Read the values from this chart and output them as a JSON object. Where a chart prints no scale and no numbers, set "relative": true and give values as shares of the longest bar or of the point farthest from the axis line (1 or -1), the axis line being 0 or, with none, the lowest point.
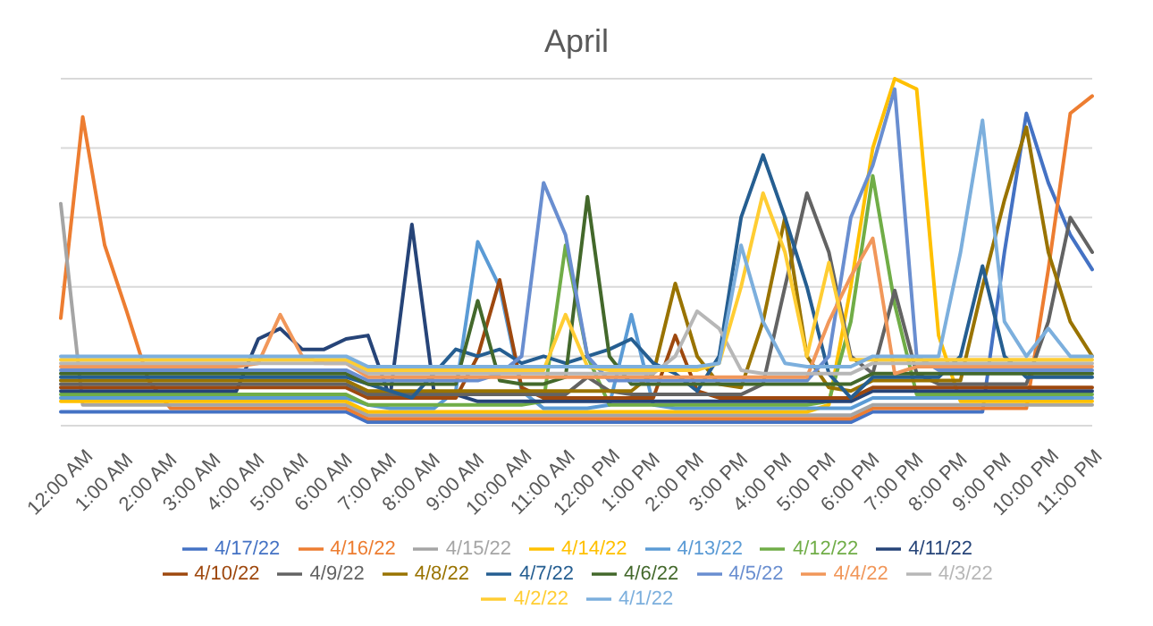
{
  "chart_data": {
    "type": "line",
    "title": "April",
    "relative": true,
    "grid": "y",
    "legend": "bottom",
    "categories": [
      "12:00 AM",
      null,
      "1:00 AM",
      null,
      "2:00 AM",
      null,
      "3:00 AM",
      null,
      "4:00 AM",
      null,
      "5:00 AM",
      null,
      "6:00 AM",
      null,
      "7:00 AM",
      null,
      "8:00 AM",
      null,
      "9:00 AM",
      null,
      "10:00 AM",
      null,
      "11:00 AM",
      null,
      "12:00 PM",
      null,
      "1:00 PM",
      null,
      "2:00 PM",
      null,
      "3:00 PM",
      null,
      "4:00 PM",
      null,
      "5:00 PM",
      null,
      "6:00 PM",
      null,
      "7:00 PM",
      null,
      "8:00 PM",
      null,
      "9:00 PM",
      null,
      "10:00 PM",
      null,
      "11:00 PM",
      null
    ],
    "series": [
      {
        "name": "4/17/22",
        "color": "#4472c4",
        "values": [
          0.04,
          0.04,
          0.04,
          0.04,
          0.04,
          0.04,
          0.04,
          0.04,
          0.04,
          0.04,
          0.04,
          0.04,
          0.04,
          0.04,
          0.01,
          0.01,
          0.01,
          0.01,
          0.01,
          0.01,
          0.01,
          0.01,
          0.01,
          0.01,
          0.01,
          0.01,
          0.01,
          0.01,
          0.01,
          0.01,
          0.01,
          0.01,
          0.01,
          0.01,
          0.01,
          0.01,
          0.01,
          0.04,
          0.04,
          0.04,
          0.04,
          0.04,
          0.04,
          0.5,
          0.9,
          0.7,
          0.55,
          0.45
        ]
      },
      {
        "name": "4/16/22",
        "color": "#ed7d31",
        "values": [
          0.31,
          0.89,
          0.52,
          0.33,
          0.13,
          0.05,
          0.05,
          0.05,
          0.05,
          0.05,
          0.05,
          0.05,
          0.05,
          0.05,
          0.02,
          0.02,
          0.02,
          0.02,
          0.02,
          0.02,
          0.02,
          0.02,
          0.02,
          0.02,
          0.02,
          0.02,
          0.02,
          0.02,
          0.02,
          0.02,
          0.02,
          0.02,
          0.02,
          0.02,
          0.02,
          0.02,
          0.02,
          0.05,
          0.05,
          0.05,
          0.05,
          0.05,
          0.05,
          0.05,
          0.05,
          0.45,
          0.9,
          0.95
        ]
      },
      {
        "name": "4/15/22",
        "color": "#a5a5a5",
        "values": [
          0.64,
          0.06,
          0.06,
          0.06,
          0.06,
          0.06,
          0.06,
          0.06,
          0.06,
          0.06,
          0.06,
          0.06,
          0.06,
          0.06,
          0.03,
          0.03,
          0.03,
          0.03,
          0.03,
          0.03,
          0.03,
          0.03,
          0.03,
          0.03,
          0.03,
          0.03,
          0.03,
          0.03,
          0.03,
          0.03,
          0.03,
          0.03,
          0.03,
          0.03,
          0.03,
          0.03,
          0.03,
          0.06,
          0.06,
          0.06,
          0.06,
          0.06,
          0.06,
          0.06,
          0.06,
          0.06,
          0.06,
          0.06
        ]
      },
      {
        "name": "4/14/22",
        "color": "#ffc000",
        "values": [
          0.07,
          0.07,
          0.07,
          0.07,
          0.07,
          0.07,
          0.07,
          0.07,
          0.07,
          0.07,
          0.07,
          0.07,
          0.07,
          0.07,
          0.04,
          0.04,
          0.04,
          0.04,
          0.04,
          0.04,
          0.04,
          0.04,
          0.04,
          0.04,
          0.04,
          0.04,
          0.04,
          0.04,
          0.04,
          0.04,
          0.04,
          0.04,
          0.04,
          0.04,
          0.04,
          0.06,
          0.4,
          0.8,
          1,
          0.97,
          0.26,
          0.07,
          0.07,
          0.07,
          0.07,
          0.07,
          0.07,
          0.07
        ]
      },
      {
        "name": "4/13/22",
        "color": "#5b9bd5",
        "values": [
          0.08,
          0.08,
          0.08,
          0.08,
          0.08,
          0.08,
          0.08,
          0.08,
          0.08,
          0.08,
          0.08,
          0.08,
          0.08,
          0.08,
          0.06,
          0.05,
          0.05,
          0.05,
          0.1,
          0.53,
          0.4,
          0.1,
          0.05,
          0.05,
          0.05,
          0.06,
          0.32,
          0.06,
          0.05,
          0.05,
          0.05,
          0.05,
          0.05,
          0.05,
          0.05,
          0.05,
          0.05,
          0.08,
          0.08,
          0.08,
          0.08,
          0.08,
          0.08,
          0.08,
          0.08,
          0.08,
          0.08,
          0.08
        ]
      },
      {
        "name": "4/12/22",
        "color": "#70ad47",
        "values": [
          0.09,
          0.09,
          0.09,
          0.09,
          0.09,
          0.09,
          0.09,
          0.09,
          0.09,
          0.09,
          0.09,
          0.09,
          0.09,
          0.09,
          0.06,
          0.06,
          0.06,
          0.06,
          0.06,
          0.06,
          0.06,
          0.06,
          0.07,
          0.52,
          0.2,
          0.06,
          0.06,
          0.06,
          0.06,
          0.06,
          0.06,
          0.06,
          0.06,
          0.06,
          0.06,
          0.07,
          0.3,
          0.72,
          0.35,
          0.09,
          0.09,
          0.09,
          0.09,
          0.09,
          0.09,
          0.09,
          0.09,
          0.09
        ]
      },
      {
        "name": "4/11/22",
        "color": "#264478",
        "values": [
          0.1,
          0.1,
          0.1,
          0.1,
          0.1,
          0.1,
          0.1,
          0.1,
          0.1,
          0.25,
          0.28,
          0.22,
          0.22,
          0.25,
          0.26,
          0.08,
          0.58,
          0.1,
          0.09,
          0.07,
          0.07,
          0.07,
          0.07,
          0.07,
          0.07,
          0.07,
          0.07,
          0.07,
          0.07,
          0.07,
          0.07,
          0.07,
          0.07,
          0.07,
          0.07,
          0.07,
          0.07,
          0.1,
          0.1,
          0.1,
          0.1,
          0.1,
          0.1,
          0.1,
          0.1,
          0.1,
          0.1,
          0.1
        ]
      },
      {
        "name": "4/10/22",
        "color": "#9e480e",
        "values": [
          0.11,
          0.11,
          0.11,
          0.11,
          0.11,
          0.11,
          0.11,
          0.11,
          0.11,
          0.11,
          0.11,
          0.11,
          0.11,
          0.11,
          0.08,
          0.08,
          0.08,
          0.08,
          0.08,
          0.2,
          0.42,
          0.11,
          0.08,
          0.08,
          0.08,
          0.08,
          0.08,
          0.08,
          0.26,
          0.1,
          0.08,
          0.08,
          0.08,
          0.08,
          0.08,
          0.08,
          0.08,
          0.11,
          0.11,
          0.11,
          0.11,
          0.11,
          0.11,
          0.11,
          0.11,
          0.11,
          0.11,
          0.11
        ]
      },
      {
        "name": "4/9/22",
        "color": "#636363",
        "values": [
          0.12,
          0.12,
          0.12,
          0.12,
          0.12,
          0.12,
          0.12,
          0.12,
          0.12,
          0.12,
          0.12,
          0.12,
          0.12,
          0.12,
          0.09,
          0.09,
          0.09,
          0.09,
          0.09,
          0.09,
          0.09,
          0.09,
          0.09,
          0.09,
          0.14,
          0.1,
          0.09,
          0.09,
          0.09,
          0.09,
          0.09,
          0.09,
          0.12,
          0.4,
          0.67,
          0.5,
          0.2,
          0.15,
          0.39,
          0.15,
          0.12,
          0.12,
          0.12,
          0.12,
          0.12,
          0.3,
          0.6,
          0.5
        ]
      },
      {
        "name": "4/8/22",
        "color": "#997300",
        "values": [
          0.13,
          0.13,
          0.13,
          0.13,
          0.13,
          0.13,
          0.13,
          0.13,
          0.13,
          0.13,
          0.13,
          0.13,
          0.13,
          0.13,
          0.1,
          0.1,
          0.1,
          0.1,
          0.1,
          0.1,
          0.1,
          0.1,
          0.1,
          0.1,
          0.1,
          0.1,
          0.1,
          0.15,
          0.41,
          0.2,
          0.12,
          0.11,
          0.3,
          0.6,
          0.2,
          0.11,
          0.1,
          0.13,
          0.13,
          0.13,
          0.13,
          0.13,
          0.4,
          0.65,
          0.86,
          0.5,
          0.3,
          0.2
        ]
      },
      {
        "name": "4/7/22",
        "color": "#255e91",
        "values": [
          0.14,
          0.14,
          0.14,
          0.14,
          0.14,
          0.14,
          0.14,
          0.14,
          0.14,
          0.14,
          0.14,
          0.14,
          0.14,
          0.14,
          0.12,
          0.1,
          0.08,
          0.15,
          0.22,
          0.2,
          0.22,
          0.18,
          0.2,
          0.18,
          0.2,
          0.22,
          0.25,
          0.18,
          0.15,
          0.1,
          0.2,
          0.6,
          0.78,
          0.6,
          0.4,
          0.15,
          0.08,
          0.14,
          0.14,
          0.14,
          0.14,
          0.2,
          0.46,
          0.2,
          0.14,
          0.14,
          0.14,
          0.14
        ]
      },
      {
        "name": "4/6/22",
        "color": "#43682b",
        "values": [
          0.15,
          0.15,
          0.15,
          0.15,
          0.15,
          0.15,
          0.15,
          0.15,
          0.15,
          0.15,
          0.15,
          0.15,
          0.15,
          0.15,
          0.12,
          0.12,
          0.12,
          0.12,
          0.12,
          0.36,
          0.13,
          0.12,
          0.12,
          0.14,
          0.66,
          0.2,
          0.12,
          0.12,
          0.12,
          0.12,
          0.12,
          0.12,
          0.12,
          0.12,
          0.12,
          0.12,
          0.12,
          0.15,
          0.15,
          0.15,
          0.15,
          0.15,
          0.15,
          0.15,
          0.15,
          0.15,
          0.15,
          0.15
        ]
      },
      {
        "name": "4/5/22",
        "color": "#698ed0",
        "values": [
          0.16,
          0.16,
          0.16,
          0.16,
          0.16,
          0.16,
          0.16,
          0.16,
          0.16,
          0.16,
          0.16,
          0.16,
          0.16,
          0.16,
          0.13,
          0.13,
          0.13,
          0.13,
          0.13,
          0.13,
          0.15,
          0.2,
          0.7,
          0.55,
          0.2,
          0.13,
          0.13,
          0.13,
          0.13,
          0.13,
          0.13,
          0.13,
          0.13,
          0.13,
          0.13,
          0.2,
          0.6,
          0.75,
          0.97,
          0.2,
          0.16,
          0.16,
          0.16,
          0.16,
          0.16,
          0.16,
          0.16,
          0.16
        ]
      },
      {
        "name": "4/4/22",
        "color": "#f1975a",
        "values": [
          0.17,
          0.17,
          0.17,
          0.17,
          0.17,
          0.17,
          0.17,
          0.17,
          0.17,
          0.18,
          0.32,
          0.2,
          0.18,
          0.18,
          0.14,
          0.14,
          0.14,
          0.14,
          0.14,
          0.14,
          0.14,
          0.14,
          0.14,
          0.14,
          0.14,
          0.14,
          0.14,
          0.14,
          0.14,
          0.14,
          0.14,
          0.14,
          0.14,
          0.14,
          0.14,
          0.3,
          0.43,
          0.54,
          0.15,
          0.17,
          0.17,
          0.17,
          0.17,
          0.17,
          0.17,
          0.17,
          0.17,
          0.17
        ]
      },
      {
        "name": "4/3/22",
        "color": "#b7b7b7",
        "values": [
          0.18,
          0.18,
          0.18,
          0.18,
          0.18,
          0.18,
          0.18,
          0.18,
          0.18,
          0.18,
          0.18,
          0.18,
          0.18,
          0.18,
          0.15,
          0.15,
          0.15,
          0.15,
          0.15,
          0.15,
          0.15,
          0.15,
          0.15,
          0.15,
          0.15,
          0.15,
          0.15,
          0.15,
          0.2,
          0.33,
          0.28,
          0.16,
          0.15,
          0.15,
          0.15,
          0.15,
          0.15,
          0.18,
          0.18,
          0.18,
          0.18,
          0.18,
          0.18,
          0.18,
          0.18,
          0.18,
          0.18,
          0.18
        ]
      },
      {
        "name": "4/2/22",
        "color": "#ffcd33",
        "values": [
          0.19,
          0.19,
          0.19,
          0.19,
          0.19,
          0.19,
          0.19,
          0.19,
          0.19,
          0.19,
          0.19,
          0.19,
          0.19,
          0.19,
          0.16,
          0.16,
          0.16,
          0.16,
          0.16,
          0.16,
          0.16,
          0.16,
          0.16,
          0.32,
          0.17,
          0.16,
          0.16,
          0.16,
          0.16,
          0.16,
          0.18,
          0.4,
          0.67,
          0.5,
          0.2,
          0.47,
          0.19,
          0.19,
          0.19,
          0.19,
          0.19,
          0.19,
          0.19,
          0.19,
          0.19,
          0.19,
          0.19,
          0.19
        ]
      },
      {
        "name": "4/1/22",
        "color": "#7cafdd",
        "values": [
          0.2,
          0.2,
          0.2,
          0.2,
          0.2,
          0.2,
          0.2,
          0.2,
          0.2,
          0.2,
          0.2,
          0.2,
          0.2,
          0.2,
          0.17,
          0.17,
          0.17,
          0.17,
          0.17,
          0.17,
          0.17,
          0.17,
          0.17,
          0.17,
          0.17,
          0.17,
          0.17,
          0.17,
          0.17,
          0.17,
          0.18,
          0.52,
          0.3,
          0.18,
          0.17,
          0.17,
          0.17,
          0.2,
          0.2,
          0.2,
          0.2,
          0.5,
          0.88,
          0.3,
          0.2,
          0.28,
          0.2,
          0.2
        ]
      }
    ]
  }
}
